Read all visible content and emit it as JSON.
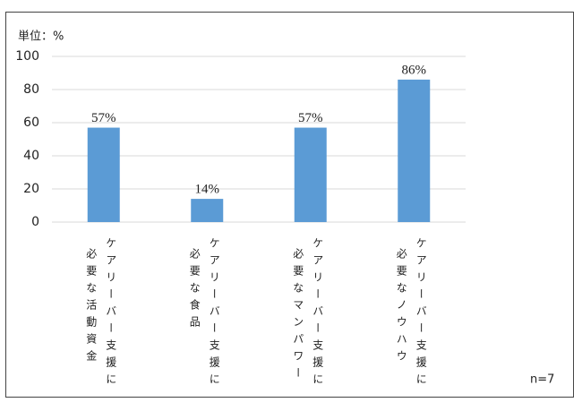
{
  "chart_data": {
    "type": "bar",
    "unit_label": "単位：%",
    "note": "n=7",
    "categories": [
      [
        "ケアリーバー支援に",
        "必要な活動資金"
      ],
      [
        "ケアリーバー支援に",
        "必要な食品"
      ],
      [
        "ケアリーバー支援に",
        "必要なマンパワー"
      ],
      [
        "ケアリーバー支援に",
        "必要なノウハウ"
      ]
    ],
    "values": [
      57,
      14,
      57,
      86
    ],
    "value_labels": [
      "57%",
      "14%",
      "57%",
      "86%"
    ],
    "color": "#5b9bd5",
    "ylim": [
      0,
      100
    ],
    "yticks": [
      0,
      20,
      40,
      60,
      80,
      100
    ],
    "grid": true
  }
}
